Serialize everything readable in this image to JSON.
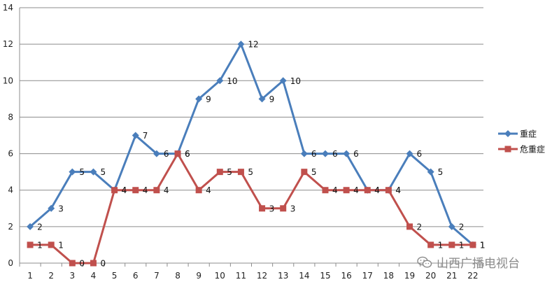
{
  "chart_data": {
    "type": "line",
    "title": "",
    "xlabel": "",
    "ylabel": "",
    "x": [
      "1",
      "2",
      "3",
      "4",
      "5",
      "6",
      "7",
      "8",
      "9",
      "10",
      "11",
      "12",
      "13",
      "14",
      "15",
      "16",
      "17",
      "18",
      "19",
      "20",
      "21",
      "22"
    ],
    "ylim": [
      0,
      14
    ],
    "yticks": [
      "0",
      "2",
      "4",
      "6",
      "8",
      "10",
      "12",
      "14"
    ],
    "grid": true,
    "legend_position": "right",
    "series": [
      {
        "name": "重症",
        "color": "#4a7ebb",
        "marker": "diamond",
        "values": [
          2,
          3,
          5,
          5,
          4,
          7,
          6,
          6,
          9,
          10,
          12,
          9,
          10,
          6,
          6,
          6,
          4,
          4,
          6,
          5,
          2,
          1
        ]
      },
      {
        "name": "危重症",
        "color": "#c0504d",
        "marker": "square",
        "values": [
          1,
          1,
          0,
          0,
          4,
          4,
          4,
          6,
          4,
          5,
          5,
          3,
          3,
          5,
          4,
          4,
          4,
          4,
          2,
          1,
          1,
          1
        ]
      }
    ]
  },
  "watermark": {
    "text": "山西广播电视台",
    "icon": "wechat-icon"
  }
}
